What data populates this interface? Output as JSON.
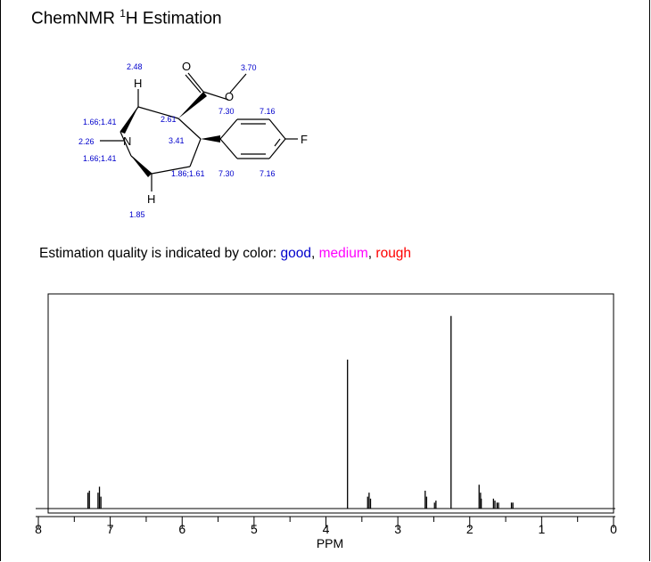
{
  "header": {
    "title_prefix": "ChemNMR ",
    "title_sup": "1",
    "title_suffix": "H Estimation"
  },
  "legend": {
    "prefix": "Estimation quality is indicated by color: ",
    "good": "good",
    "sep1": ", ",
    "medium": "medium",
    "sep2": ", ",
    "rough": "rough",
    "colors": {
      "good": "#0000cc",
      "medium": "#ff00ff",
      "rough": "#ff0000"
    }
  },
  "molecule": {
    "atoms": {
      "O_carbonyl": "O",
      "O_ester": "O",
      "N": "N",
      "F": "F",
      "H_top": "H",
      "H_bottom": "H"
    },
    "shifts": {
      "h_top": "2.48",
      "methyl": "3.70",
      "ch_ester": "2.61",
      "ch_aryl": "3.41",
      "ch2_upper": "1.66;1.41",
      "n_methyl": "2.26",
      "ch2_lower": "1.66;1.41",
      "ch2_ring": "1.86;1.61",
      "h_bottom": "1.85",
      "ar_top_left": "7.30",
      "ar_top_right": "7.16",
      "ar_bottom_left": "7.30",
      "ar_bottom_right": "7.16"
    }
  },
  "chart_data": {
    "type": "line",
    "title": "",
    "xlabel": "PPM",
    "ylabel": "",
    "xlim": [
      8,
      0
    ],
    "x_reversed": true,
    "ticks": [
      "8",
      "7",
      "6",
      "5",
      "4",
      "3",
      "2",
      "1",
      "0"
    ],
    "tick_values": [
      8,
      7,
      6,
      5,
      4,
      3,
      2,
      1,
      0
    ],
    "peaks": [
      {
        "ppm": 7.31,
        "intensity": 0.08
      },
      {
        "ppm": 7.29,
        "intensity": 0.09
      },
      {
        "ppm": 7.17,
        "intensity": 0.08
      },
      {
        "ppm": 7.15,
        "intensity": 0.11
      },
      {
        "ppm": 7.13,
        "intensity": 0.06
      },
      {
        "ppm": 3.7,
        "intensity": 0.75
      },
      {
        "ppm": 3.42,
        "intensity": 0.06
      },
      {
        "ppm": 3.4,
        "intensity": 0.08
      },
      {
        "ppm": 3.38,
        "intensity": 0.05
      },
      {
        "ppm": 2.62,
        "intensity": 0.09
      },
      {
        "ppm": 2.6,
        "intensity": 0.06
      },
      {
        "ppm": 2.49,
        "intensity": 0.03
      },
      {
        "ppm": 2.47,
        "intensity": 0.04
      },
      {
        "ppm": 2.26,
        "intensity": 0.97
      },
      {
        "ppm": 1.87,
        "intensity": 0.12
      },
      {
        "ppm": 1.85,
        "intensity": 0.08
      },
      {
        "ppm": 1.84,
        "intensity": 0.05
      },
      {
        "ppm": 1.67,
        "intensity": 0.05
      },
      {
        "ppm": 1.65,
        "intensity": 0.04
      },
      {
        "ppm": 1.62,
        "intensity": 0.03
      },
      {
        "ppm": 1.6,
        "intensity": 0.03
      },
      {
        "ppm": 1.42,
        "intensity": 0.03
      },
      {
        "ppm": 1.4,
        "intensity": 0.03
      }
    ],
    "grid": false
  }
}
